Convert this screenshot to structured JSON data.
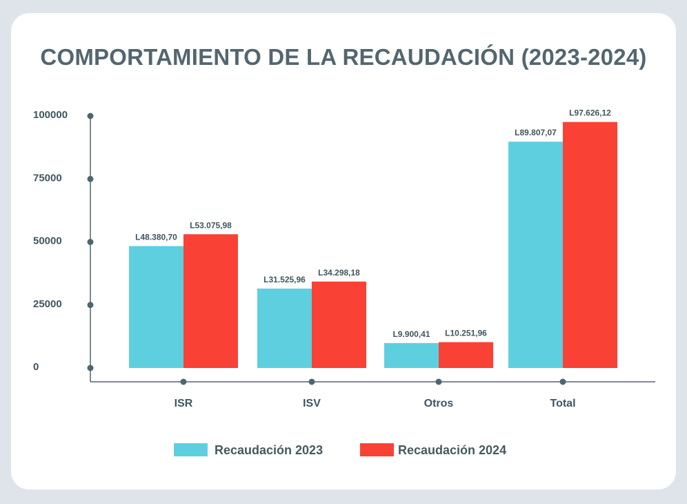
{
  "chart_data": {
    "type": "bar",
    "title": "COMPORTAMIENTO DE LA RECAUDACIÓN (2023-2024)",
    "xlabel": "",
    "ylabel": "",
    "categories": [
      "ISR",
      "ISV",
      "Otros",
      "Total"
    ],
    "series": [
      {
        "name": "Recaudación 2023",
        "color": "#5ecfdf",
        "values": [
          48380.7,
          31525.96,
          9900.41,
          89807.07
        ],
        "labels": [
          "L48.380,70",
          "L31.525,96",
          "L9.900,41",
          "L89.807,07"
        ]
      },
      {
        "name": "Recaudación 2024",
        "color": "#fa4136",
        "values": [
          53075.98,
          34298.18,
          10251.96,
          97626.12
        ],
        "labels": [
          "L53.075,98",
          "L34.298,18",
          "L10.251,96",
          "L97.626,12"
        ]
      }
    ],
    "ylim": [
      0,
      100000
    ],
    "yticks": [
      0,
      25000,
      50000,
      75000,
      100000
    ],
    "ytick_labels": [
      "0",
      "25000",
      "50000",
      "75000",
      "100000"
    ],
    "grid": false,
    "legend_position": "bottom-center",
    "axis_color": "#4f6570"
  }
}
